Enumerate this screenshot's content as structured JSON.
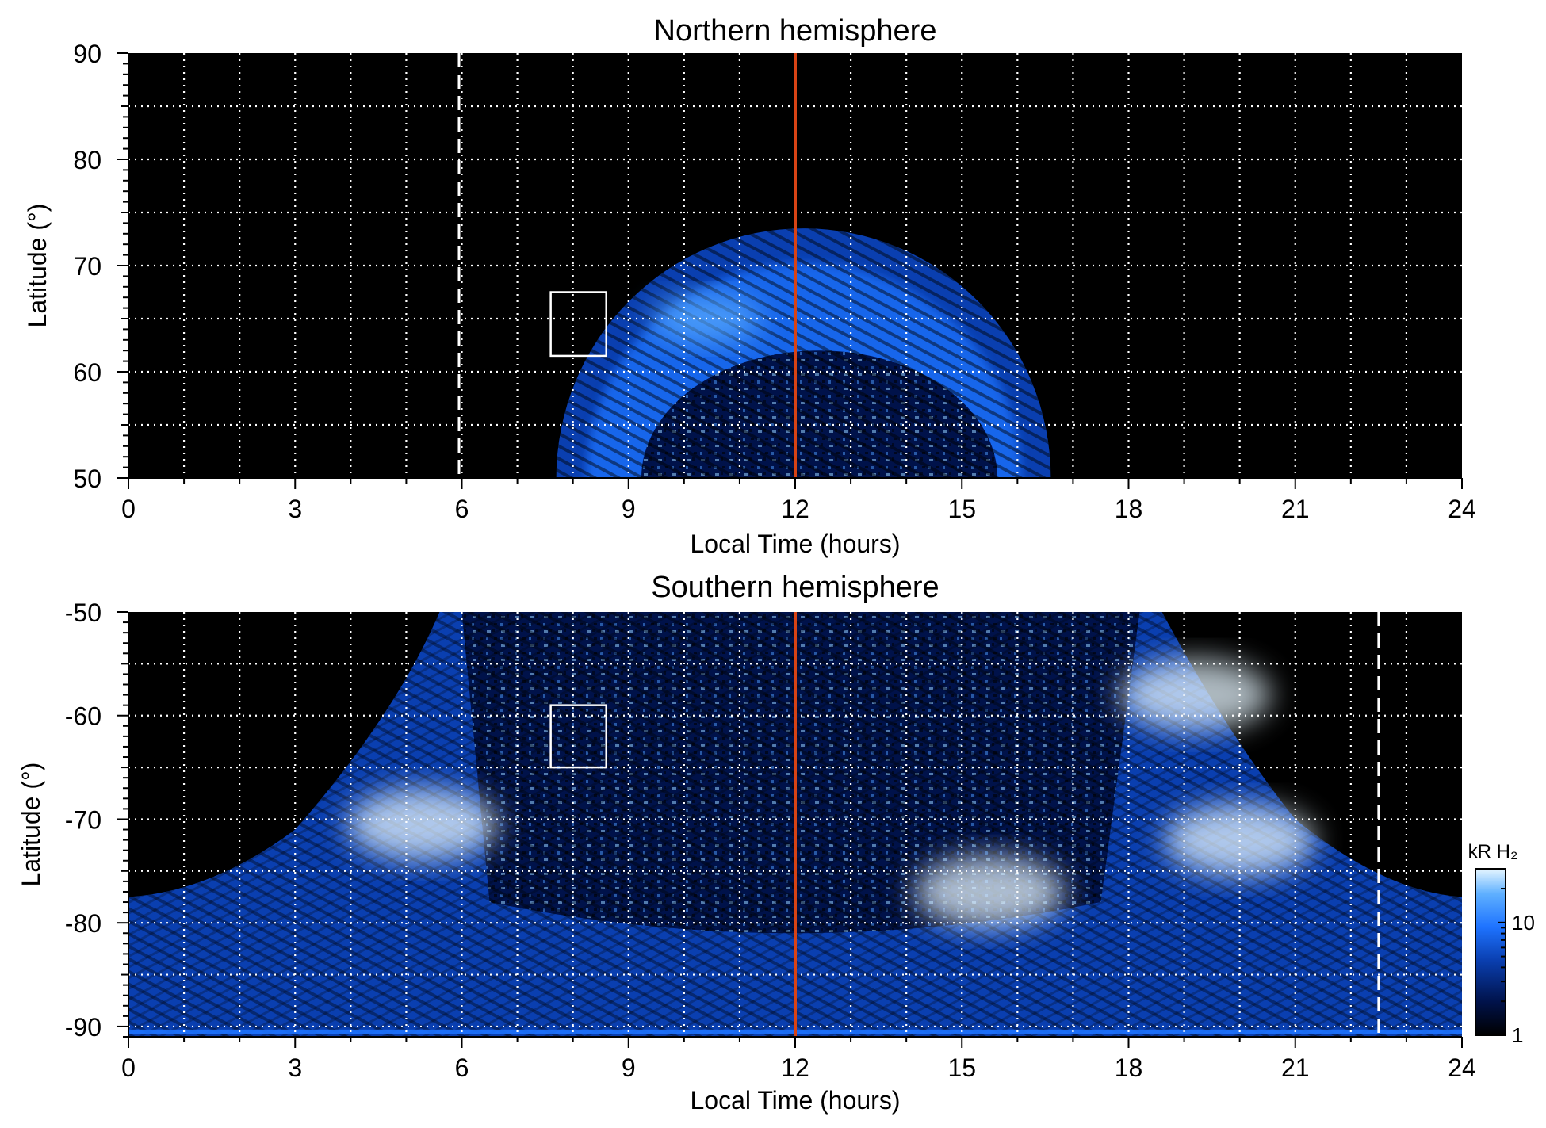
{
  "chart_data": [
    {
      "type": "heatmap",
      "title": "Northern hemisphere",
      "xlabel": "Local Time (hours)",
      "ylabel": "Latitude (°)",
      "xlim": [
        0,
        24
      ],
      "ylim": [
        50,
        90
      ],
      "xticks": [
        0,
        3,
        6,
        9,
        12,
        15,
        18,
        21,
        24
      ],
      "yticks": [
        50,
        60,
        70,
        80,
        90
      ],
      "grid": true,
      "vertical_lines": [
        {
          "x": 5.95,
          "style": "dashed",
          "color": "#ffffff"
        },
        {
          "x": 12,
          "style": "solid",
          "color": "#d84315"
        }
      ],
      "box": {
        "x": [
          7.6,
          8.6
        ],
        "y": [
          61.5,
          67.5
        ]
      },
      "emission": {
        "x_extent": [
          7.7,
          16.6
        ],
        "top_lat": 73.5,
        "bright_band_lat": [
          62,
          71
        ],
        "inner_core_lat": [
          50,
          62
        ],
        "peak_kR": 20
      }
    },
    {
      "type": "heatmap",
      "title": "Southern hemisphere",
      "xlabel": "Local Time (hours)",
      "ylabel": "Latitude (°)",
      "xlim": [
        0,
        24
      ],
      "ylim": [
        -91,
        -50
      ],
      "xticks": [
        0,
        3,
        6,
        9,
        12,
        15,
        18,
        21,
        24
      ],
      "yticks": [
        -90,
        -80,
        -70,
        -60,
        -50
      ],
      "grid": true,
      "vertical_lines": [
        {
          "x": 12,
          "style": "solid",
          "color": "#d84315"
        },
        {
          "x": 22.5,
          "style": "dashed",
          "color": "#ffffff"
        }
      ],
      "box": {
        "x": [
          7.6,
          8.6
        ],
        "y": [
          -65,
          -59
        ]
      },
      "emission": {
        "bright_patches": [
          {
            "x": 5.3,
            "y": -70.5,
            "kR": 30
          },
          {
            "x": 15.5,
            "y": -77,
            "kR": 20
          },
          {
            "x": 20,
            "y": -72,
            "kR": 25
          },
          {
            "x": 19.2,
            "y": -58,
            "kR": 18
          }
        ],
        "peak_kR": 30
      }
    }
  ],
  "colorbar": {
    "unit": "kR H₂",
    "scale": "log",
    "range": [
      1,
      30
    ],
    "ticks": [
      1,
      10
    ],
    "colors": [
      "#000000",
      "#00124a",
      "#0a3fb0",
      "#1e73ff",
      "#5fb0ff",
      "#e6f6ff"
    ]
  }
}
